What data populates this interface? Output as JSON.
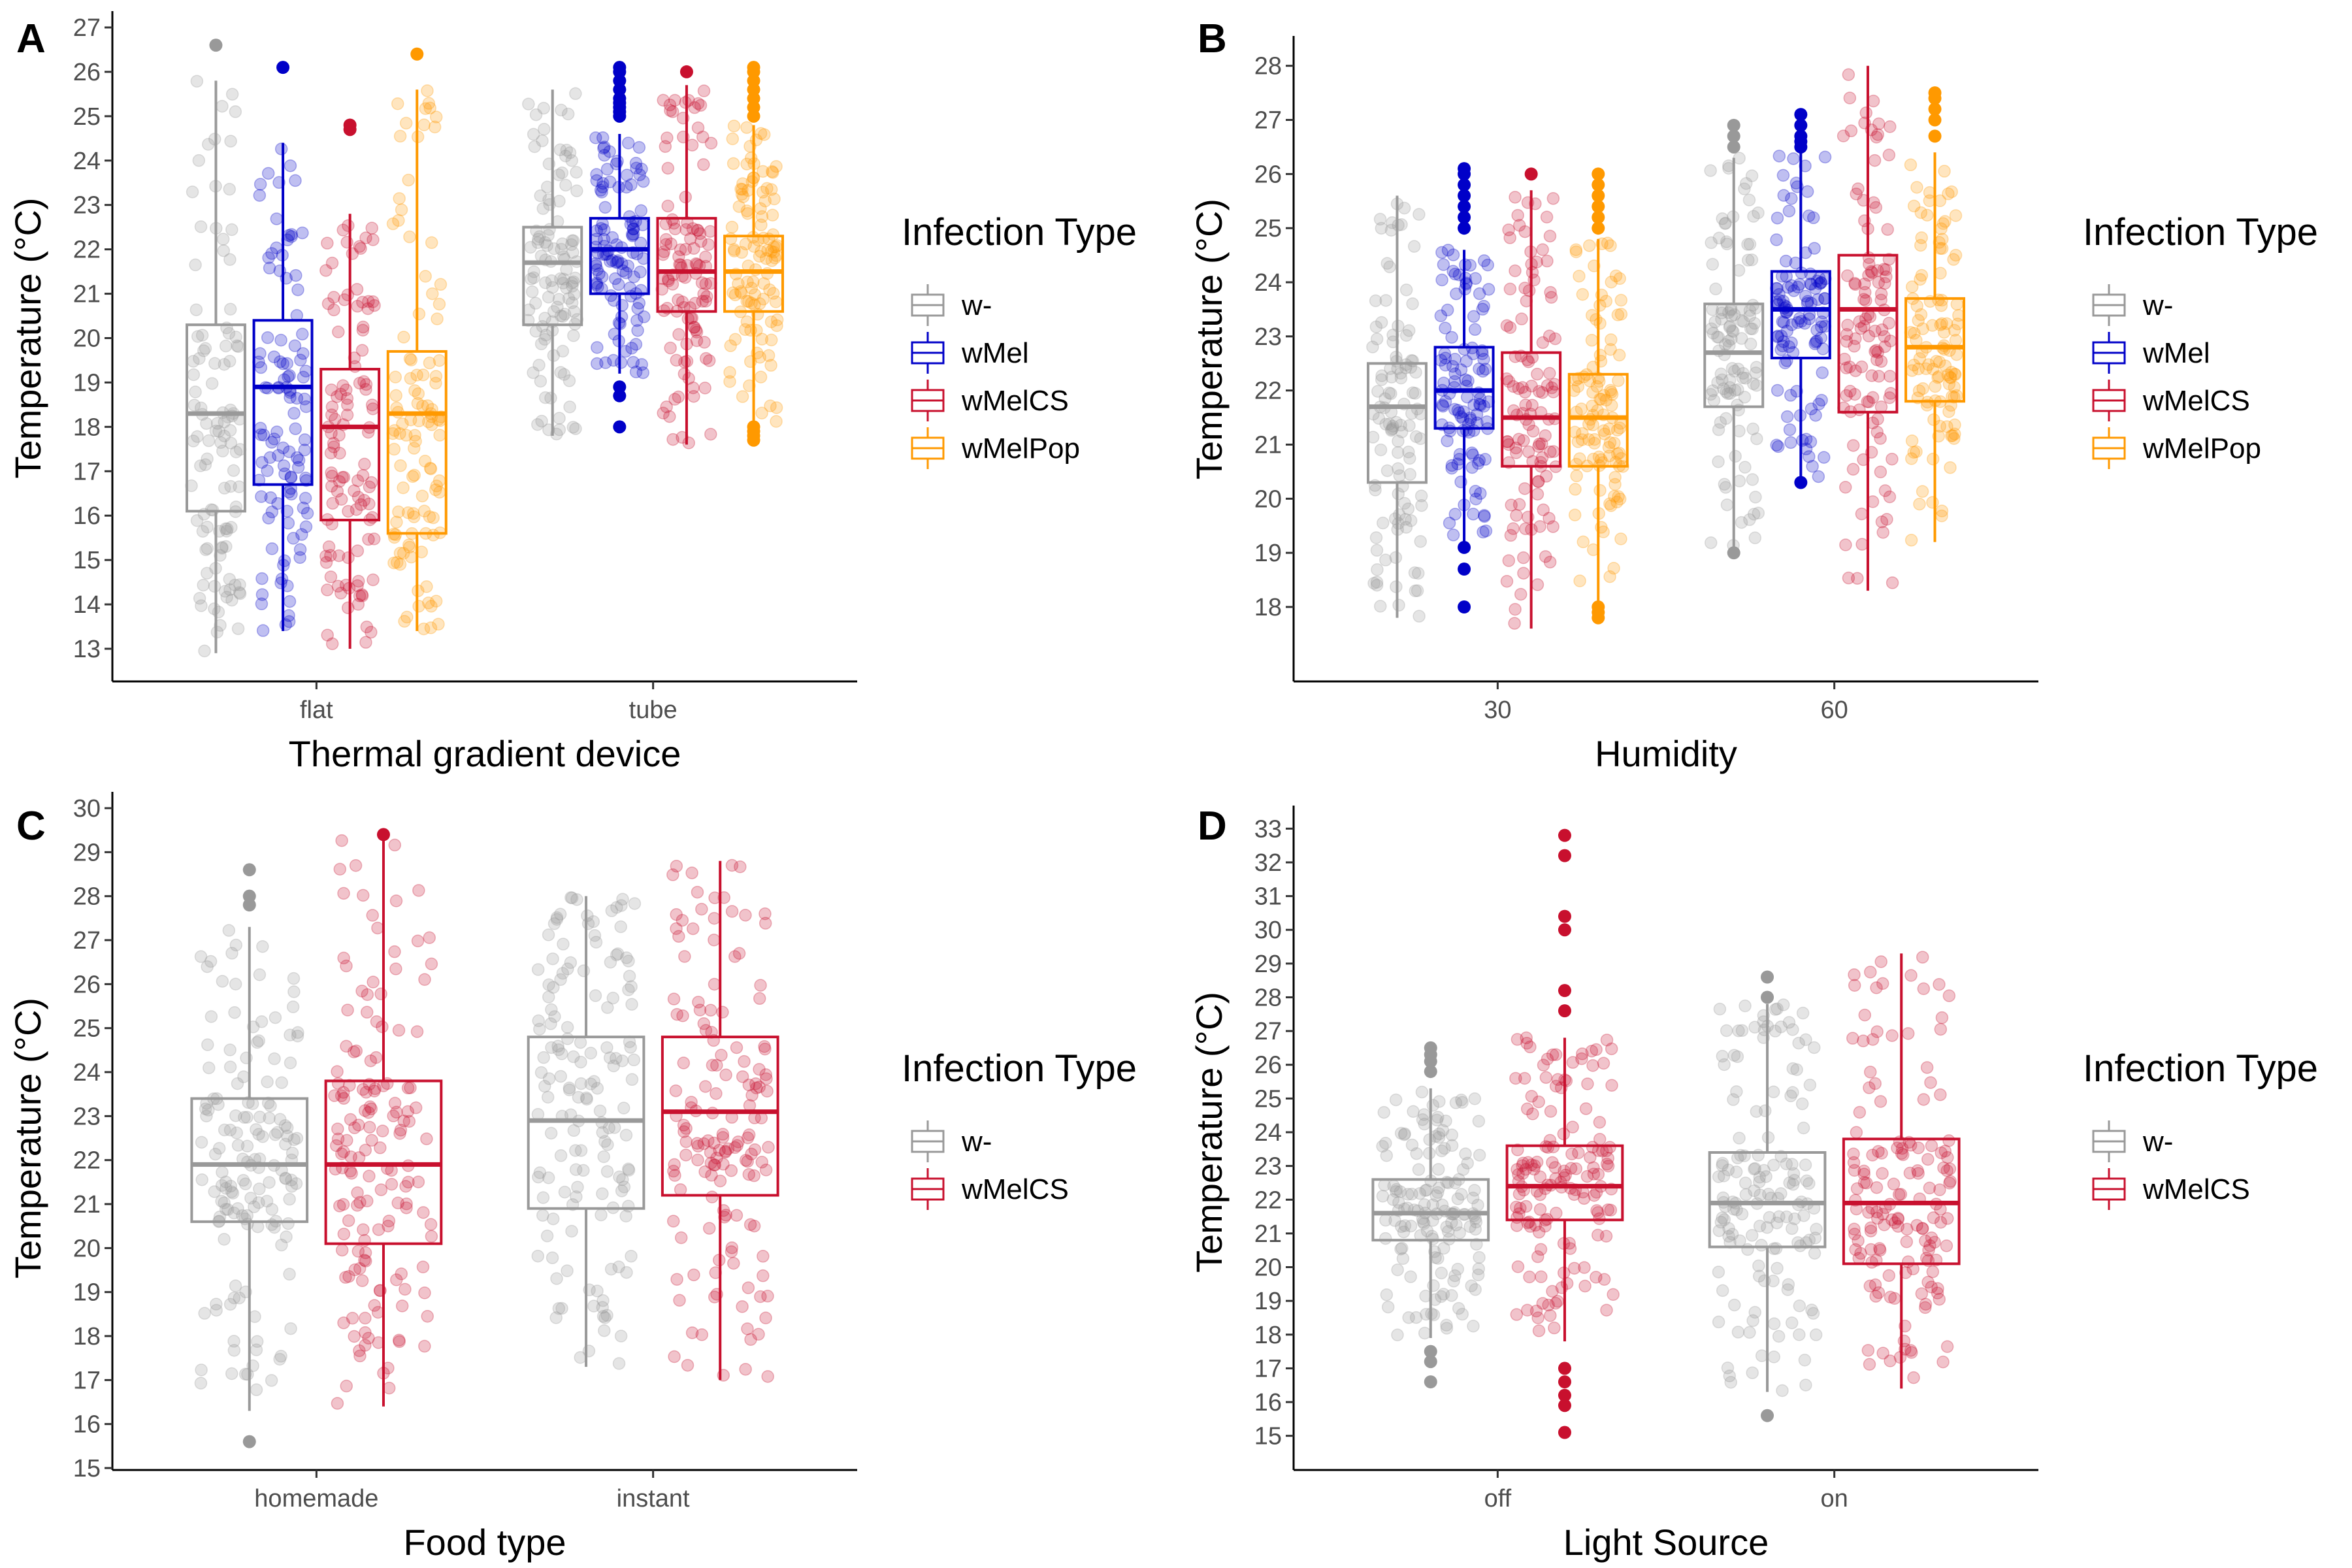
{
  "legend_title": "Infection Type",
  "colors": {
    "w-": "#999999",
    "wMel": "#0000c8",
    "wMelCS": "#c8102e",
    "wMelPop": "#ff9900"
  },
  "chart_data": [
    {
      "panel": "A",
      "type": "box",
      "xlabel": "Thermal gradient device",
      "ylabel": "Temperature (°C)",
      "ylim": [
        13,
        27
      ],
      "yticks": [
        13,
        14,
        15,
        16,
        17,
        18,
        19,
        20,
        21,
        22,
        23,
        24,
        25,
        26,
        27
      ],
      "categories": [
        "flat",
        "tube"
      ],
      "legend": [
        "w-",
        "wMel",
        "wMelCS",
        "wMelPop"
      ],
      "series": [
        {
          "name": "w-",
          "values": [
            {
              "min": 12.9,
              "q1": 16.1,
              "median": 18.3,
              "q3": 20.3,
              "max": 25.8,
              "outliers": [
                26.6
              ]
            },
            {
              "min": 17.8,
              "q1": 20.3,
              "median": 21.7,
              "q3": 22.5,
              "max": 25.6,
              "outliers": []
            }
          ]
        },
        {
          "name": "wMel",
          "values": [
            {
              "min": 13.4,
              "q1": 16.7,
              "median": 18.9,
              "q3": 20.4,
              "max": 24.4,
              "outliers": [
                26.1
              ]
            },
            {
              "min": 19.2,
              "q1": 21.0,
              "median": 22.0,
              "q3": 22.7,
              "max": 24.6,
              "outliers": [
                18.0,
                18.7,
                18.9,
                25.0,
                25.1,
                25.2,
                25.3,
                25.4,
                25.6,
                25.8,
                26.0,
                26.1
              ]
            }
          ]
        },
        {
          "name": "wMelCS",
          "values": [
            {
              "min": 13.0,
              "q1": 15.9,
              "median": 18.0,
              "q3": 19.3,
              "max": 22.8,
              "outliers": [
                24.7,
                24.8
              ]
            },
            {
              "min": 17.6,
              "q1": 20.6,
              "median": 21.5,
              "q3": 22.7,
              "max": 25.7,
              "outliers": [
                26.0
              ]
            }
          ]
        },
        {
          "name": "wMelPop",
          "values": [
            {
              "min": 13.4,
              "q1": 15.6,
              "median": 18.3,
              "q3": 19.7,
              "max": 25.6,
              "outliers": [
                26.4
              ]
            },
            {
              "min": 18.1,
              "q1": 20.6,
              "median": 21.5,
              "q3": 22.3,
              "max": 24.8,
              "outliers": [
                17.7,
                17.8,
                17.9,
                18.0,
                25.0,
                25.2,
                25.4,
                25.6,
                25.8,
                26.0,
                26.1
              ]
            }
          ]
        }
      ]
    },
    {
      "panel": "B",
      "type": "box",
      "xlabel": "Humidity",
      "ylabel": "Temperature (°C)",
      "ylim": [
        17.65,
        28.25
      ],
      "yticks": [
        18,
        19,
        20,
        21,
        22,
        23,
        24,
        25,
        26,
        27,
        28
      ],
      "categories": [
        "30",
        "60"
      ],
      "legend": [
        "w-",
        "wMel",
        "wMelCS",
        "wMelPop"
      ],
      "series": [
        {
          "name": "w-",
          "values": [
            {
              "min": 17.8,
              "q1": 20.3,
              "median": 21.7,
              "q3": 22.5,
              "max": 25.6,
              "outliers": []
            },
            {
              "min": 19.1,
              "q1": 21.7,
              "median": 22.7,
              "q3": 23.6,
              "max": 26.3,
              "outliers": [
                19.0,
                26.5,
                26.7,
                26.9
              ]
            }
          ]
        },
        {
          "name": "wMel",
          "values": [
            {
              "min": 19.2,
              "q1": 21.3,
              "median": 22.0,
              "q3": 22.8,
              "max": 24.6,
              "outliers": [
                18.0,
                18.7,
                19.1,
                25.0,
                25.2,
                25.4,
                25.6,
                25.8,
                26.0,
                26.1
              ]
            },
            {
              "min": 20.4,
              "q1": 22.6,
              "median": 23.5,
              "q3": 24.2,
              "max": 26.4,
              "outliers": [
                20.3,
                26.5,
                26.6,
                26.7,
                26.9,
                27.1
              ]
            }
          ]
        },
        {
          "name": "wMelCS",
          "values": [
            {
              "min": 17.6,
              "q1": 20.6,
              "median": 21.5,
              "q3": 22.7,
              "max": 25.7,
              "outliers": [
                26.0
              ]
            },
            {
              "min": 18.3,
              "q1": 21.6,
              "median": 23.5,
              "q3": 24.5,
              "max": 28.0,
              "outliers": []
            }
          ]
        },
        {
          "name": "wMelPop",
          "values": [
            {
              "min": 18.1,
              "q1": 20.6,
              "median": 21.5,
              "q3": 22.3,
              "max": 24.8,
              "outliers": [
                17.8,
                17.9,
                18.0,
                25.0,
                25.2,
                25.4,
                25.6,
                25.8,
                26.0
              ]
            },
            {
              "min": 19.2,
              "q1": 21.8,
              "median": 22.8,
              "q3": 23.7,
              "max": 26.4,
              "outliers": [
                26.7,
                27.0,
                27.2,
                27.4,
                27.5
              ]
            }
          ]
        }
      ]
    },
    {
      "panel": "C",
      "type": "box",
      "xlabel": "Food type",
      "ylabel": "Temperature (°C)",
      "ylim": [
        15,
        30
      ],
      "yticks": [
        15,
        16,
        17,
        18,
        19,
        20,
        21,
        22,
        23,
        24,
        25,
        26,
        27,
        28,
        29,
        30
      ],
      "categories": [
        "homemade",
        "instant"
      ],
      "legend": [
        "w-",
        "wMelCS"
      ],
      "series": [
        {
          "name": "w-",
          "values": [
            {
              "min": 16.3,
              "q1": 20.6,
              "median": 21.9,
              "q3": 23.4,
              "max": 27.3,
              "outliers": [
                15.6,
                27.8,
                28.0,
                28.6
              ]
            },
            {
              "min": 17.3,
              "q1": 20.9,
              "median": 22.9,
              "q3": 24.8,
              "max": 28.0,
              "outliers": []
            }
          ]
        },
        {
          "name": "wMelCS",
          "values": [
            {
              "min": 16.4,
              "q1": 20.1,
              "median": 21.9,
              "q3": 23.8,
              "max": 29.3,
              "outliers": [
                29.4
              ]
            },
            {
              "min": 17.0,
              "q1": 21.2,
              "median": 23.1,
              "q3": 24.8,
              "max": 28.8,
              "outliers": []
            }
          ]
        }
      ]
    },
    {
      "panel": "D",
      "type": "box",
      "xlabel": "Light Source",
      "ylabel": "Temperature (°C)",
      "ylim": [
        14.8,
        33.2
      ],
      "yticks": [
        15,
        16,
        17,
        18,
        19,
        20,
        21,
        22,
        23,
        24,
        25,
        26,
        27,
        28,
        29,
        30,
        31,
        32,
        33
      ],
      "categories": [
        "off",
        "on"
      ],
      "legend": [
        "w-",
        "wMelCS"
      ],
      "series": [
        {
          "name": "w-",
          "values": [
            {
              "min": 17.9,
              "q1": 20.8,
              "median": 21.6,
              "q3": 22.6,
              "max": 25.3,
              "outliers": [
                16.6,
                17.2,
                17.5,
                25.8,
                26.1,
                26.3,
                26.5
              ]
            },
            {
              "min": 16.3,
              "q1": 20.6,
              "median": 21.9,
              "q3": 23.4,
              "max": 27.8,
              "outliers": [
                15.6,
                28.0,
                28.6
              ]
            }
          ]
        },
        {
          "name": "wMelCS",
          "values": [
            {
              "min": 17.8,
              "q1": 21.4,
              "median": 22.4,
              "q3": 23.6,
              "max": 26.8,
              "outliers": [
                15.1,
                15.9,
                16.2,
                16.6,
                17.0,
                27.6,
                28.2,
                30.0,
                30.4,
                32.2,
                32.8
              ]
            },
            {
              "min": 16.4,
              "q1": 20.1,
              "median": 21.9,
              "q3": 23.8,
              "max": 29.3,
              "outliers": []
            }
          ]
        }
      ]
    }
  ]
}
